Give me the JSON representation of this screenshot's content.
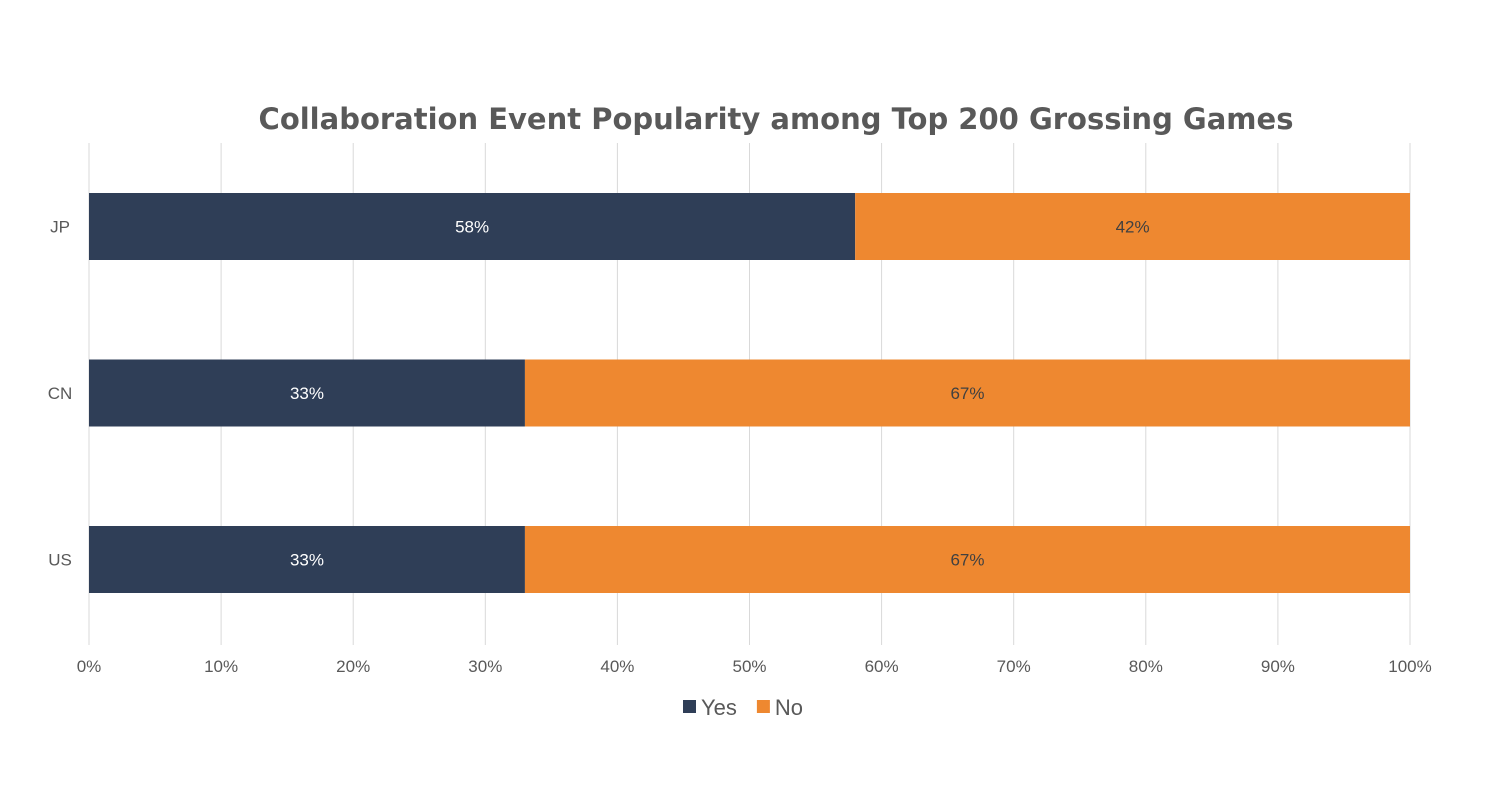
{
  "chart_data": {
    "type": "bar",
    "orientation": "horizontal",
    "stacked": "percent",
    "title": "Collaboration Event Popularity among Top 200 Grossing Games",
    "categories": [
      "JP",
      "CN",
      "US"
    ],
    "series": [
      {
        "name": "Yes",
        "values": [
          58,
          33,
          33
        ],
        "labels": [
          "58%",
          "33%",
          "33%"
        ],
        "color": "#2F3E57"
      },
      {
        "name": "No",
        "values": [
          42,
          67,
          67
        ],
        "labels": [
          "42%",
          "67%",
          "67%"
        ],
        "color": "#EE8830"
      }
    ],
    "xlim": [
      0,
      100
    ],
    "xticks": [
      "0%",
      "10%",
      "20%",
      "30%",
      "40%",
      "50%",
      "60%",
      "70%",
      "80%",
      "90%",
      "100%"
    ],
    "grid": "vertical",
    "legend": "bottom"
  }
}
